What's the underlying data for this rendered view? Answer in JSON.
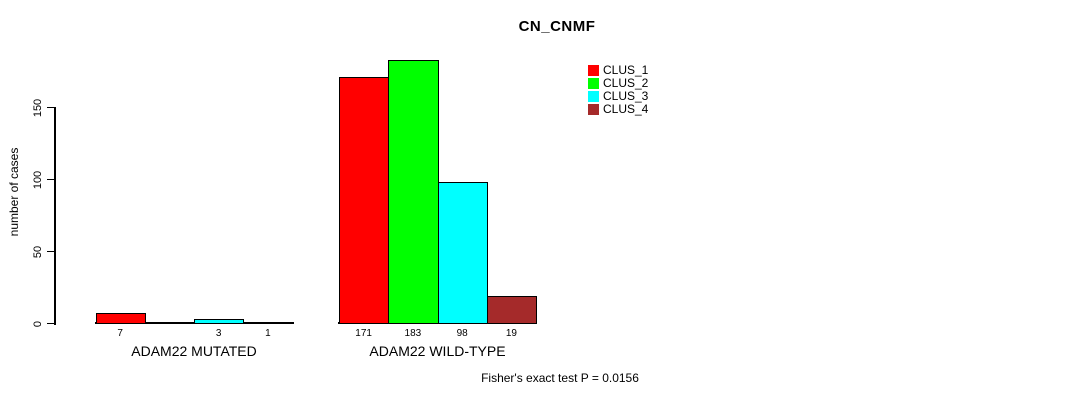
{
  "title": "CN_CNMF",
  "footer": "Fisher's exact test P = 0.0156",
  "chart_data": {
    "type": "bar",
    "title": "CN_CNMF",
    "xlabel": "",
    "ylabel": "number of cases",
    "yticks": [
      0,
      50,
      100,
      150
    ],
    "ylim": [
      0,
      190
    ],
    "grid": false,
    "legend_position": "top-right",
    "background": "#ffffff",
    "axis_color": "#000000",
    "series": [
      {
        "name": "CLUS_1",
        "color": "#FF0000"
      },
      {
        "name": "CLUS_2",
        "color": "#00FF00"
      },
      {
        "name": "CLUS_3",
        "color": "#00FFFF"
      },
      {
        "name": "CLUS_4",
        "color": "#A52A2A"
      }
    ],
    "groups": [
      {
        "label": "ADAM22 MUTATED",
        "values": [
          7,
          0,
          3,
          1
        ],
        "bar_labels": [
          "7",
          "",
          "3",
          "1"
        ]
      },
      {
        "label": "ADAM22 WILD-TYPE",
        "values": [
          171,
          183,
          98,
          19
        ],
        "bar_labels": [
          "171",
          "183",
          "98",
          "19"
        ]
      }
    ],
    "annotation": "Fisher's exact test P = 0.0156"
  }
}
